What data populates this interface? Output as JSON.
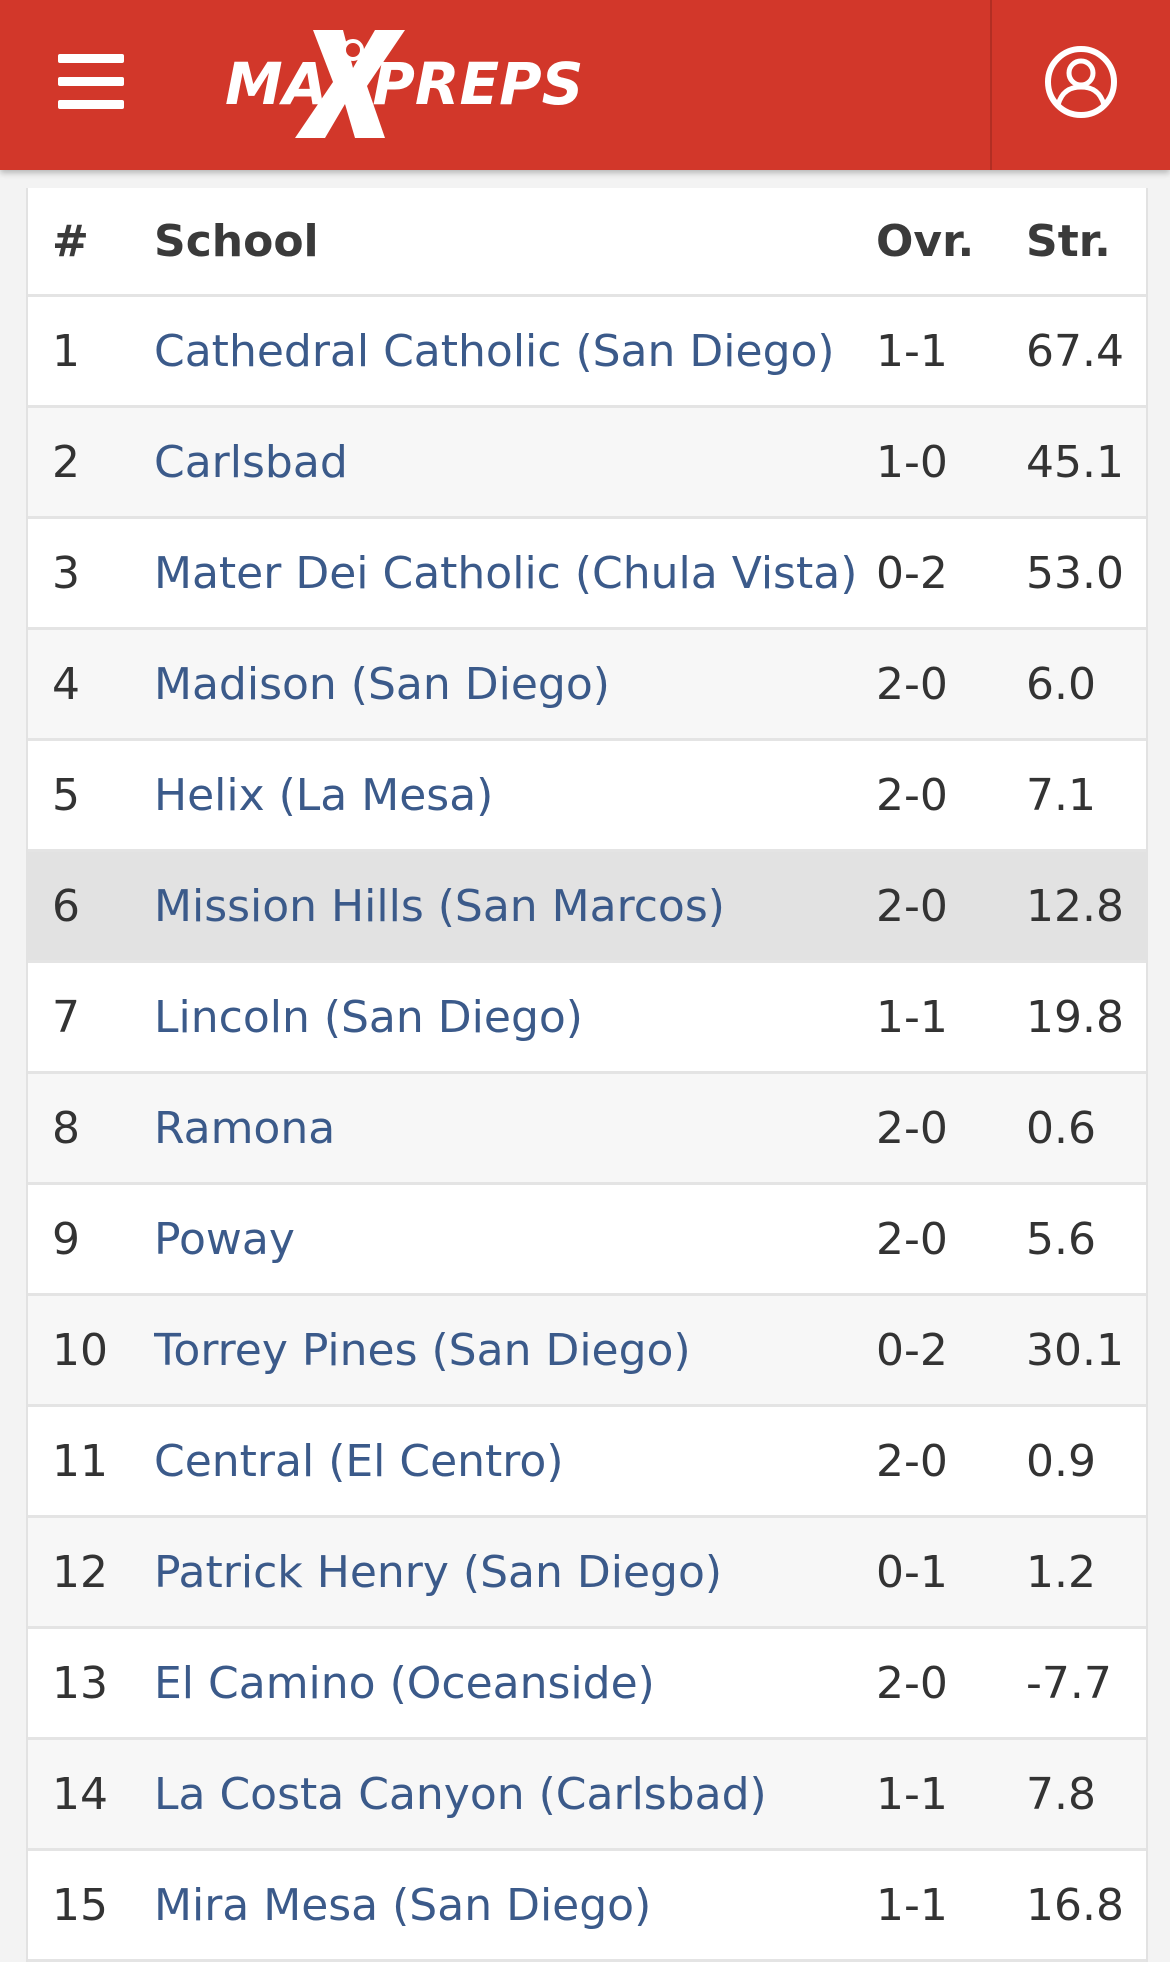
{
  "header": {
    "logo_text": "MAXPREPS",
    "menu_icon": "hamburger-menu-icon",
    "profile_icon": "user-profile-icon",
    "brand_color": "#d2372a"
  },
  "table": {
    "columns": {
      "rank": "#",
      "school": "School",
      "overall": "Ovr.",
      "strength": "Str."
    },
    "rows": [
      {
        "rank": "1",
        "school": "Cathedral Catholic (San Diego)",
        "overall": "1-1",
        "strength": "67.4"
      },
      {
        "rank": "2",
        "school": "Carlsbad",
        "overall": "1-0",
        "strength": "45.1"
      },
      {
        "rank": "3",
        "school": "Mater Dei Catholic (Chula Vista)",
        "overall": "0-2",
        "strength": "53.0"
      },
      {
        "rank": "4",
        "school": "Madison (San Diego)",
        "overall": "2-0",
        "strength": "6.0"
      },
      {
        "rank": "5",
        "school": "Helix (La Mesa)",
        "overall": "2-0",
        "strength": "7.1"
      },
      {
        "rank": "6",
        "school": "Mission Hills (San Marcos)",
        "overall": "2-0",
        "strength": "12.8"
      },
      {
        "rank": "7",
        "school": "Lincoln (San Diego)",
        "overall": "1-1",
        "strength": "19.8"
      },
      {
        "rank": "8",
        "school": "Ramona",
        "overall": "2-0",
        "strength": "0.6"
      },
      {
        "rank": "9",
        "school": "Poway",
        "overall": "2-0",
        "strength": "5.6"
      },
      {
        "rank": "10",
        "school": "Torrey Pines (San Diego)",
        "overall": "0-2",
        "strength": "30.1"
      },
      {
        "rank": "11",
        "school": "Central (El Centro)",
        "overall": "2-0",
        "strength": "0.9"
      },
      {
        "rank": "12",
        "school": "Patrick Henry (San Diego)",
        "overall": "0-1",
        "strength": "1.2"
      },
      {
        "rank": "13",
        "school": "El Camino (Oceanside)",
        "overall": "2-0",
        "strength": "-7.7"
      },
      {
        "rank": "14",
        "school": "La Costa Canyon (Carlsbad)",
        "overall": "1-1",
        "strength": "7.8"
      },
      {
        "rank": "15",
        "school": "Mira Mesa (San Diego)",
        "overall": "1-1",
        "strength": "16.8"
      }
    ]
  }
}
